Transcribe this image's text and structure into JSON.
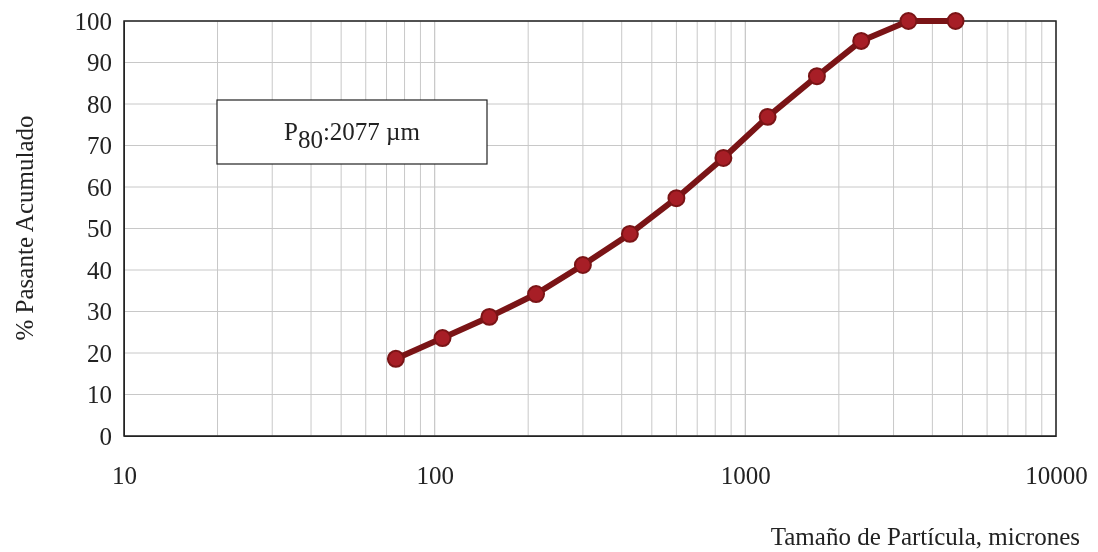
{
  "chart_data": {
    "type": "line",
    "xlabel": "Tamaño de Partícula, micrones",
    "ylabel": "% Pasante Acumulado",
    "log": "x",
    "grid": true,
    "marker": "circle",
    "line_style": "solid",
    "x": [
      75,
      106,
      150,
      212,
      300,
      425,
      600,
      850,
      1180,
      1700,
      2360,
      3350,
      4750
    ],
    "series": [
      {
        "color": "#7a1416",
        "values": [
          18.6,
          23.6,
          28.7,
          34.2,
          41.2,
          48.7,
          57.3,
          67,
          76.9,
          86.7,
          95.2,
          100,
          100
        ]
      }
    ],
    "xlim": [
      10,
      10000
    ],
    "xticks": [
      10,
      100,
      1000,
      10000
    ],
    "ylim": [
      0,
      100
    ],
    "yticks": [
      0,
      10,
      20,
      30,
      40,
      50,
      60,
      70,
      80,
      90,
      100
    ],
    "annotations": [
      "P$_{80}$:2077 µm"
    ]
  }
}
